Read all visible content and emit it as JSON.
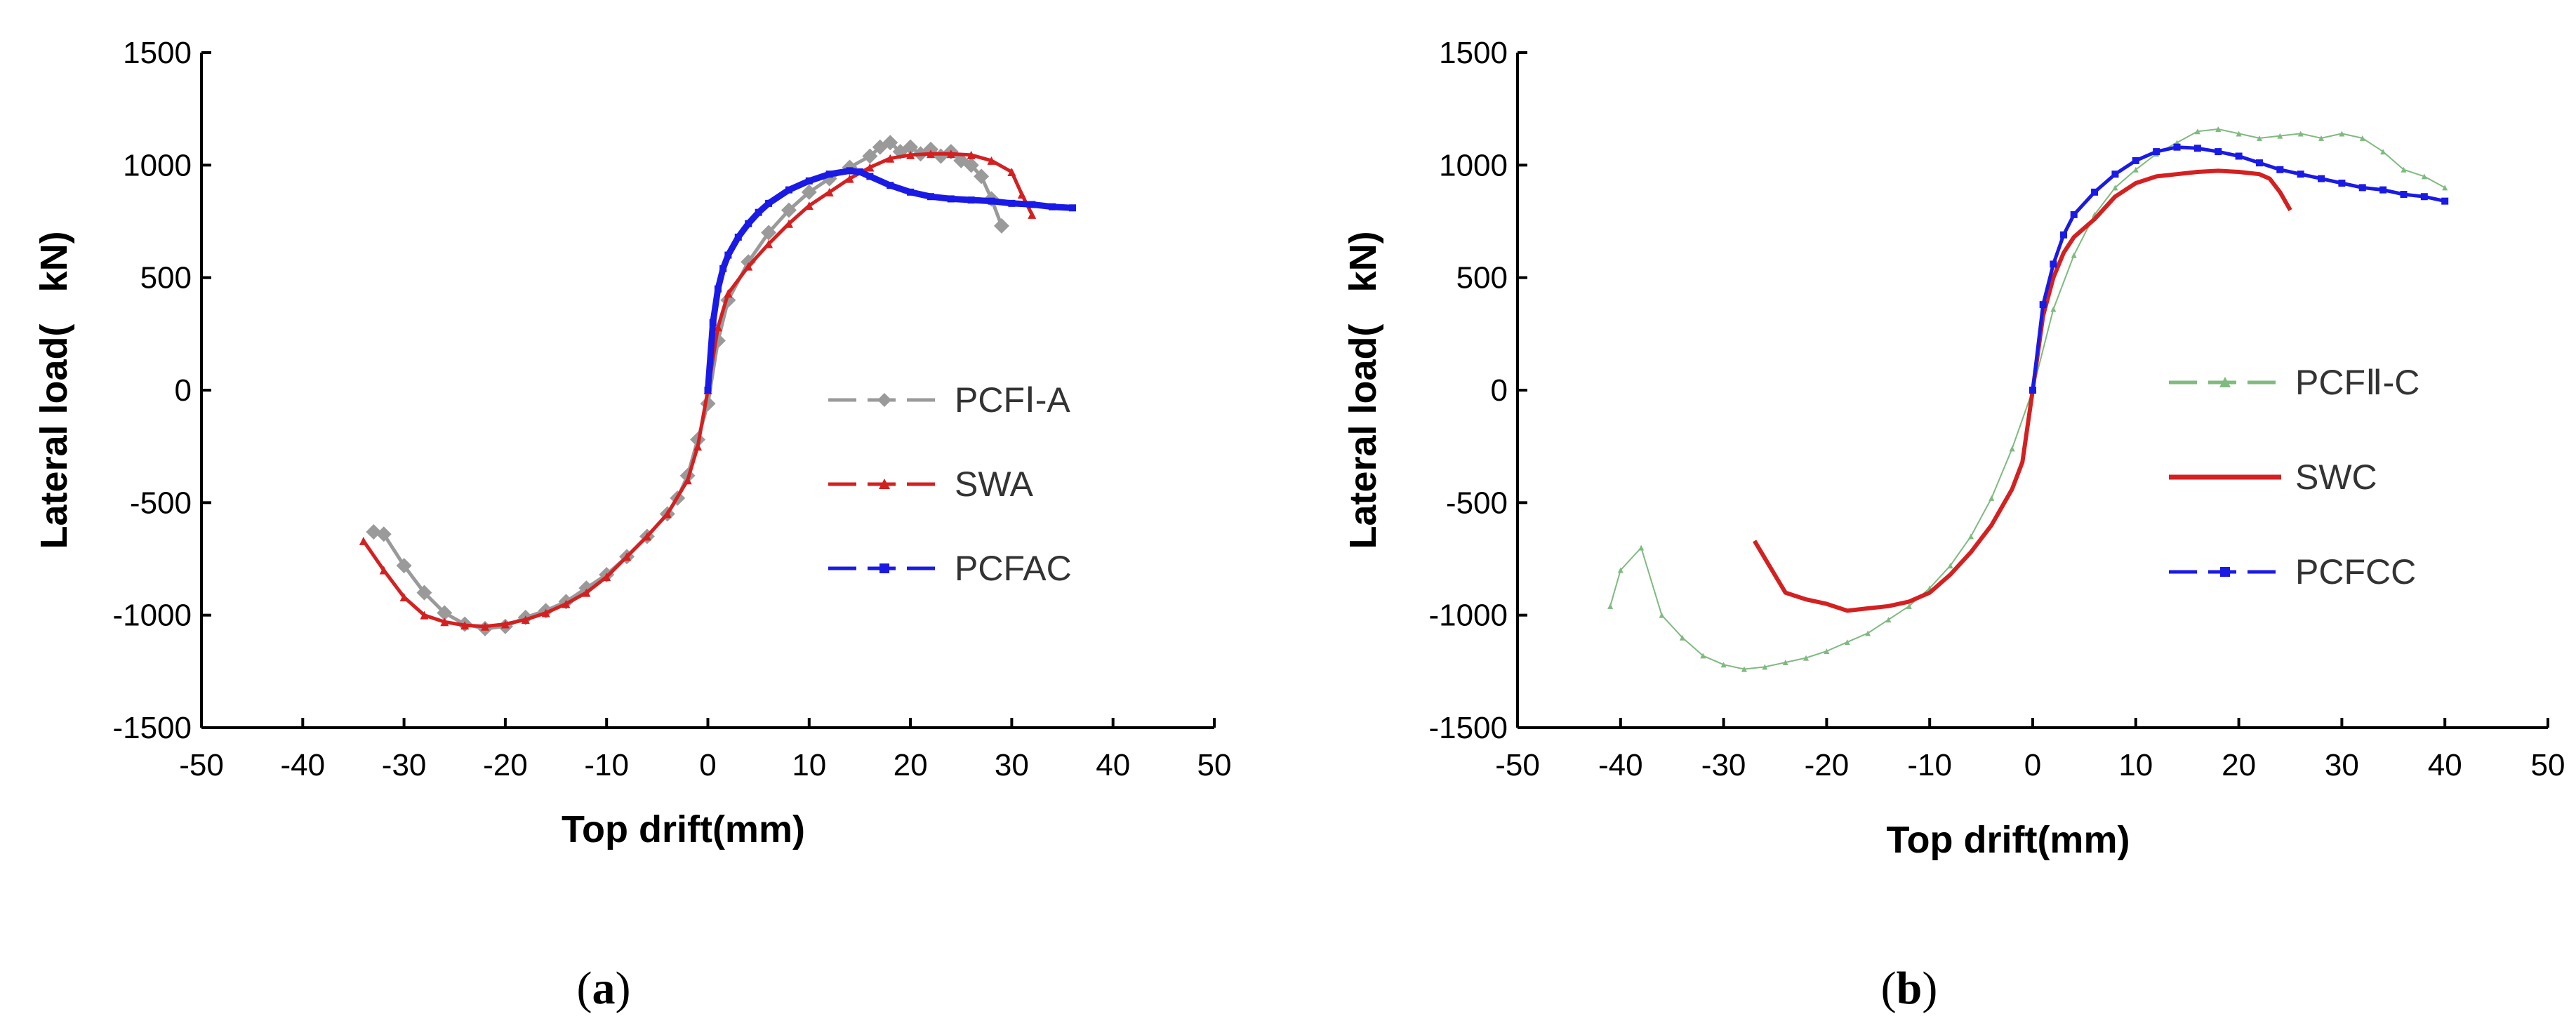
{
  "chart_data": [
    {
      "type": "line",
      "panel": "a",
      "caption": "a",
      "xlabel": "Top drift(mm)",
      "ylabel": "Lateral load(   kN)",
      "xlim": [
        -50,
        50
      ],
      "ylim": [
        -1500,
        1500
      ],
      "xticks": [
        -50,
        -40,
        -30,
        -20,
        -10,
        0,
        10,
        20,
        30,
        40,
        50
      ],
      "yticks": [
        -1500,
        -1000,
        -500,
        0,
        500,
        1000,
        1500
      ],
      "legend_position": "center-right",
      "series": [
        {
          "name": "PCFⅠ-A",
          "color": "#9a9a9a",
          "marker": "diamond",
          "x": [
            -33,
            -32,
            -30,
            -28,
            -26,
            -24,
            -22,
            -20,
            -18,
            -16,
            -14,
            -12,
            -10,
            -8,
            -6,
            -4,
            -3,
            -2,
            -1,
            0,
            1,
            2,
            4,
            6,
            8,
            10,
            12,
            14,
            16,
            17,
            18,
            19,
            20,
            21,
            22,
            23,
            24,
            25,
            26,
            27,
            28,
            29
          ],
          "y": [
            -630,
            -640,
            -780,
            -900,
            -990,
            -1040,
            -1060,
            -1050,
            -1010,
            -980,
            -940,
            -880,
            -820,
            -740,
            -650,
            -550,
            -480,
            -380,
            -220,
            -60,
            220,
            400,
            570,
            700,
            800,
            880,
            940,
            990,
            1040,
            1080,
            1100,
            1060,
            1080,
            1050,
            1070,
            1040,
            1060,
            1020,
            1000,
            950,
            850,
            730
          ]
        },
        {
          "name": "SWA",
          "color": "#d42020",
          "marker": "triangle",
          "x": [
            -34,
            -32,
            -30,
            -28,
            -26,
            -24,
            -22,
            -20,
            -18,
            -16,
            -14,
            -12,
            -10,
            -8,
            -6,
            -4,
            -2,
            -1,
            0,
            1,
            2,
            4,
            6,
            8,
            10,
            12,
            14,
            16,
            18,
            20,
            22,
            24,
            26,
            28,
            30,
            31,
            32
          ],
          "y": [
            -670,
            -800,
            -920,
            -1000,
            -1030,
            -1045,
            -1050,
            -1040,
            -1020,
            -990,
            -950,
            -900,
            -830,
            -740,
            -650,
            -550,
            -400,
            -250,
            0,
            280,
            430,
            550,
            650,
            740,
            820,
            880,
            940,
            990,
            1030,
            1045,
            1050,
            1050,
            1045,
            1020,
            970,
            870,
            780
          ]
        },
        {
          "name": "PCFAC",
          "color": "#1a1ae6",
          "marker": "square",
          "x": [
            0,
            0.5,
            1,
            1.5,
            2,
            3,
            4,
            5,
            6,
            8,
            10,
            12,
            14,
            15,
            16,
            18,
            20,
            22,
            24,
            26,
            28,
            30,
            32,
            34,
            36
          ],
          "y": [
            0,
            300,
            450,
            540,
            600,
            680,
            740,
            790,
            830,
            890,
            930,
            960,
            975,
            970,
            950,
            910,
            880,
            860,
            850,
            845,
            840,
            830,
            825,
            815,
            810
          ]
        }
      ]
    },
    {
      "type": "line",
      "panel": "b",
      "caption": "b",
      "xlabel": "Top drift(mm)",
      "ylabel": "Lateral load(   kN)",
      "xlim": [
        -50,
        50
      ],
      "ylim": [
        -1500,
        1500
      ],
      "xticks": [
        -50,
        -40,
        -30,
        -20,
        -10,
        0,
        10,
        20,
        30,
        40,
        50
      ],
      "yticks": [
        -1500,
        -1000,
        -500,
        0,
        500,
        1000,
        1500
      ],
      "legend_position": "center-right",
      "series": [
        {
          "name": "PCFⅡ-C",
          "color": "#7fba7f",
          "marker": "triangle",
          "x": [
            -41,
            -40,
            -38,
            -36,
            -34,
            -32,
            -30,
            -28,
            -26,
            -24,
            -22,
            -20,
            -18,
            -16,
            -14,
            -12,
            -10,
            -8,
            -6,
            -4,
            -2,
            0,
            2,
            4,
            6,
            8,
            10,
            12,
            14,
            16,
            18,
            20,
            22,
            24,
            26,
            28,
            30,
            32,
            34,
            36,
            38,
            40
          ],
          "y": [
            -960,
            -800,
            -700,
            -1000,
            -1100,
            -1180,
            -1220,
            -1240,
            -1230,
            -1210,
            -1190,
            -1160,
            -1120,
            -1080,
            -1020,
            -960,
            -880,
            -780,
            -650,
            -480,
            -260,
            0,
            360,
            600,
            780,
            900,
            980,
            1050,
            1100,
            1150,
            1160,
            1140,
            1120,
            1130,
            1140,
            1120,
            1140,
            1120,
            1060,
            980,
            950,
            900
          ]
        },
        {
          "name": "SWC",
          "color": "#d42020",
          "marker": "none",
          "x": [
            -27,
            -24,
            -22,
            -20,
            -18,
            -16,
            -14,
            -12,
            -10,
            -8,
            -6,
            -4,
            -2,
            -1,
            0,
            1,
            2,
            3,
            4,
            6,
            8,
            10,
            12,
            14,
            16,
            18,
            20,
            22,
            23,
            24,
            25
          ],
          "y": [
            -670,
            -900,
            -930,
            -950,
            -980,
            -970,
            -960,
            -940,
            -900,
            -820,
            -720,
            -600,
            -440,
            -320,
            0,
            330,
            500,
            610,
            680,
            760,
            860,
            920,
            950,
            960,
            970,
            975,
            970,
            960,
            940,
            880,
            800
          ]
        },
        {
          "name": "PCFCC",
          "color": "#1a1ae6",
          "marker": "square",
          "x": [
            0,
            1,
            2,
            3,
            4,
            6,
            8,
            10,
            12,
            14,
            16,
            18,
            20,
            22,
            24,
            26,
            28,
            30,
            32,
            34,
            36,
            38,
            40
          ],
          "y": [
            0,
            380,
            560,
            690,
            780,
            880,
            960,
            1020,
            1060,
            1080,
            1075,
            1060,
            1040,
            1010,
            980,
            960,
            940,
            920,
            900,
            890,
            870,
            860,
            840
          ]
        }
      ]
    }
  ]
}
